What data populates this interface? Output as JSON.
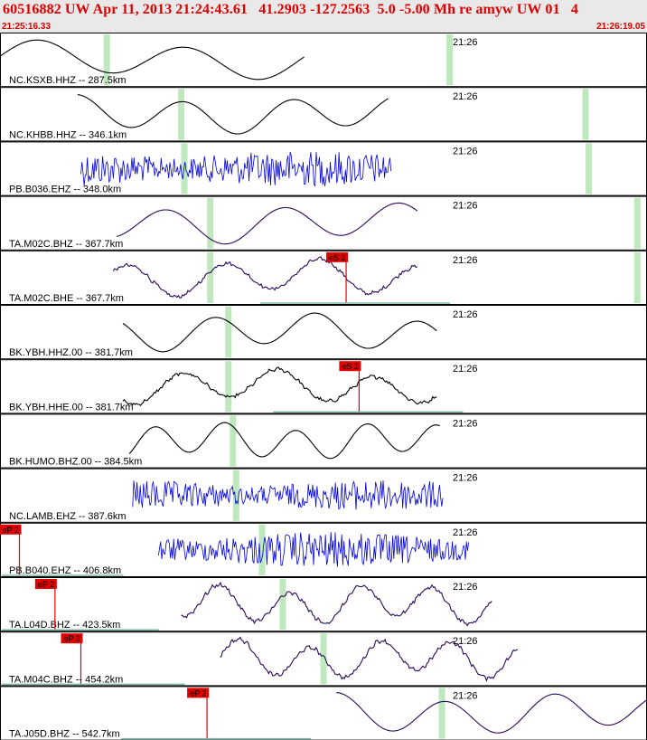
{
  "header": {
    "title": "60516882 UW Apr 11, 2013 21:24:43.61   41.2903 -127.2563  5.0 -5.00 Mh re amyw UW 01   4",
    "start_time": "21:25:16.33",
    "end_time": "21:26:19.05"
  },
  "colors": {
    "header_text": "#e00000",
    "pick_flag": "#e00000",
    "marker_band": "#bfe8bf",
    "baseline": "#7fb8a8",
    "trace_black": "#000000",
    "trace_blue": "#0000e0",
    "trace_purple": "#2a0a5a"
  },
  "panels": [
    {
      "label": "NC.KSXB.HHZ -- 287.5km",
      "time_tick": "21:26",
      "style": "smooth",
      "color": "black",
      "freq": 1.1,
      "amp": 0.33,
      "start": 0.0,
      "end": 0.47,
      "bands": [
        0.165,
        0.695
      ],
      "pick": null
    },
    {
      "label": "NC.KHBB.HHZ -- 346.1km",
      "time_tick": "21:26",
      "style": "smooth",
      "color": "black",
      "freq": 1.5,
      "amp": 0.33,
      "start": 0.12,
      "end": 0.6,
      "bands": [
        0.28,
        0.905
      ],
      "pick": null
    },
    {
      "label": "PB.B036.EHZ -- 348.0km",
      "time_tick": "21:26",
      "style": "noise",
      "color": "blue",
      "freq": 0,
      "amp": 0.33,
      "start": 0.125,
      "end": 0.605,
      "bands": [
        0.285,
        0.91
      ],
      "pick": null
    },
    {
      "label": "TA.M02C.BHZ -- 367.7km",
      "time_tick": "21:26",
      "style": "smooth",
      "color": "purple",
      "freq": 1.4,
      "amp": 0.35,
      "start": 0.18,
      "end": 0.645,
      "bands": [
        0.325,
        0.985
      ],
      "pick": null
    },
    {
      "label": "TA.M02C.BHE -- 367.7km",
      "time_tick": "21:26",
      "style": "wiggle",
      "color": "purple",
      "freq": 1.7,
      "amp": 0.32,
      "start": 0.175,
      "end": 0.645,
      "bands": [
        0.325,
        0.985
      ],
      "pick": {
        "label": "eS 2",
        "pos": 0.535
      }
    },
    {
      "label": "BK.YBH.HHZ.00 -- 381.7km",
      "time_tick": "21:26",
      "style": "smooth",
      "color": "black",
      "freq": 1.6,
      "amp": 0.33,
      "start": 0.19,
      "end": 0.675,
      "bands": [
        0.353
      ],
      "pick": null
    },
    {
      "label": "BK.YBH.HHE.00 -- 381.7km",
      "time_tick": "21:26",
      "style": "wiggle",
      "color": "black",
      "freq": 1.7,
      "amp": 0.3,
      "start": 0.19,
      "end": 0.675,
      "bands": [
        0.353
      ],
      "pick": {
        "label": "eS 2",
        "pos": 0.555
      }
    },
    {
      "label": "BK.HUMO.BHZ.00 -- 384.5km",
      "time_tick": "21:26",
      "style": "smooth",
      "color": "black",
      "freq": 2.3,
      "amp": 0.32,
      "start": 0.2,
      "end": 0.68,
      "bands": [
        0.36
      ],
      "pick": null
    },
    {
      "label": "NC.LAMB.EHZ -- 387.6km",
      "time_tick": "21:26",
      "style": "noise",
      "color": "blue",
      "freq": 0,
      "amp": 0.28,
      "start": 0.205,
      "end": 0.685,
      "bands": [
        0.365
      ],
      "pick": null
    },
    {
      "label": "PB.B040.EHZ -- 406.8km",
      "time_tick": "21:26",
      "style": "noise",
      "color": "blue",
      "freq": 0,
      "amp": 0.33,
      "start": 0.245,
      "end": 0.725,
      "bands": [
        0.405
      ],
      "pick": {
        "label": "eP 2",
        "pos": 0.03
      }
    },
    {
      "label": "TA.L04D.BHZ -- 423.5km",
      "time_tick": "21:26",
      "style": "wiggle",
      "color": "purple",
      "freq": 2.3,
      "amp": 0.34,
      "start": 0.28,
      "end": 0.76,
      "bands": [
        0.437
      ],
      "pick": {
        "label": "eP 2",
        "pos": 0.085
      }
    },
    {
      "label": "TA.M04C.BHZ -- 454.2km",
      "time_tick": "21:26",
      "style": "wiggle",
      "color": "purple",
      "freq": 2.3,
      "amp": 0.34,
      "start": 0.34,
      "end": 0.8,
      "bands": [
        0.5
      ],
      "pick": {
        "label": "eP 2",
        "pos": 0.125
      }
    },
    {
      "label": "TA.J05D.BHZ -- 542.7km",
      "time_tick": "21:26",
      "style": "smooth",
      "color": "purple",
      "freq": 1.5,
      "amp": 0.36,
      "start": 0.52,
      "end": 1.0,
      "bands": [
        0.683
      ],
      "pick": {
        "label": "eP 2",
        "pos": 0.32
      }
    }
  ]
}
